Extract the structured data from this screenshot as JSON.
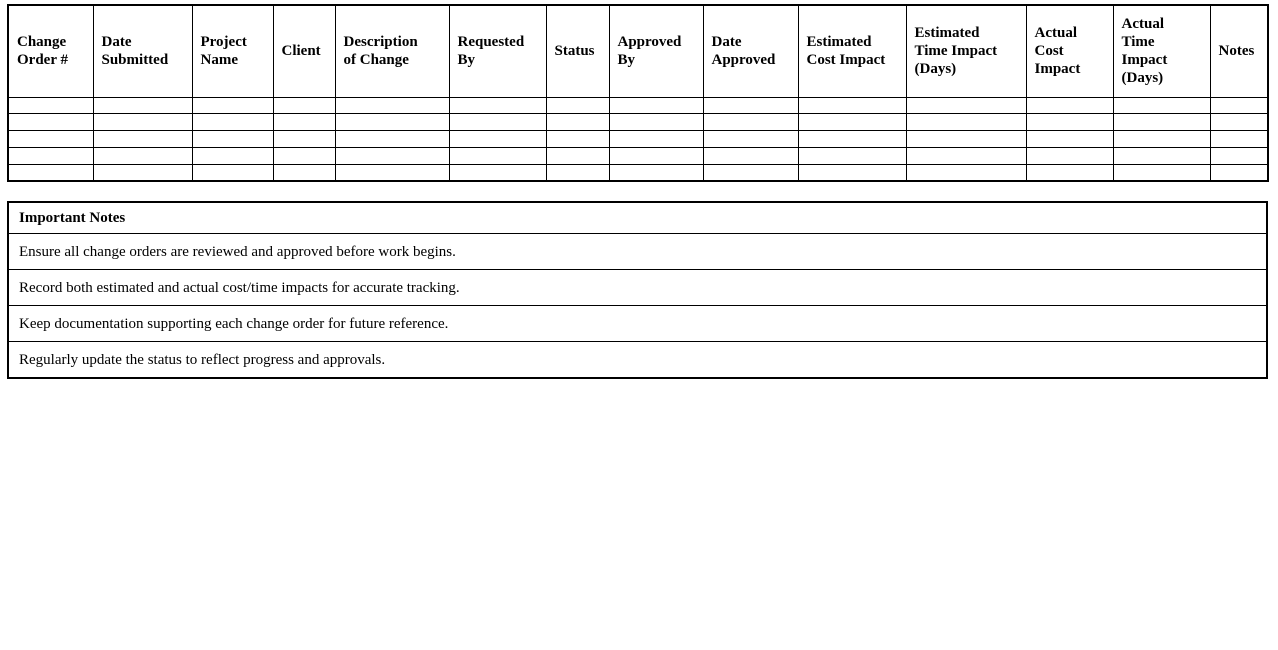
{
  "colors": {
    "background": "#ffffff",
    "border": "#000000",
    "text": "#000000"
  },
  "change_order_table": {
    "empty_row_count": 5,
    "columns": [
      {
        "label": "Change\nOrder #"
      },
      {
        "label": "Date\nSubmitted"
      },
      {
        "label": "Project\nName"
      },
      {
        "label": "Client"
      },
      {
        "label": "Description\nof Change"
      },
      {
        "label": "Requested\nBy"
      },
      {
        "label": "Status"
      },
      {
        "label": "Approved\nBy"
      },
      {
        "label": "Date\nApproved"
      },
      {
        "label": "Estimated\nCost Impact"
      },
      {
        "label": "Estimated\nTime Impact\n(Days)"
      },
      {
        "label": "Actual\nCost\nImpact"
      },
      {
        "label": "Actual\nTime\nImpact\n(Days)"
      },
      {
        "label": "Notes"
      }
    ]
  },
  "notes_section": {
    "title": "Important Notes",
    "notes": [
      "Ensure all change orders are reviewed and approved before work begins.",
      "Record both estimated and actual cost/time impacts for accurate tracking.",
      "Keep documentation supporting each change order for future reference.",
      "Regularly update the status to reflect progress and approvals."
    ]
  }
}
